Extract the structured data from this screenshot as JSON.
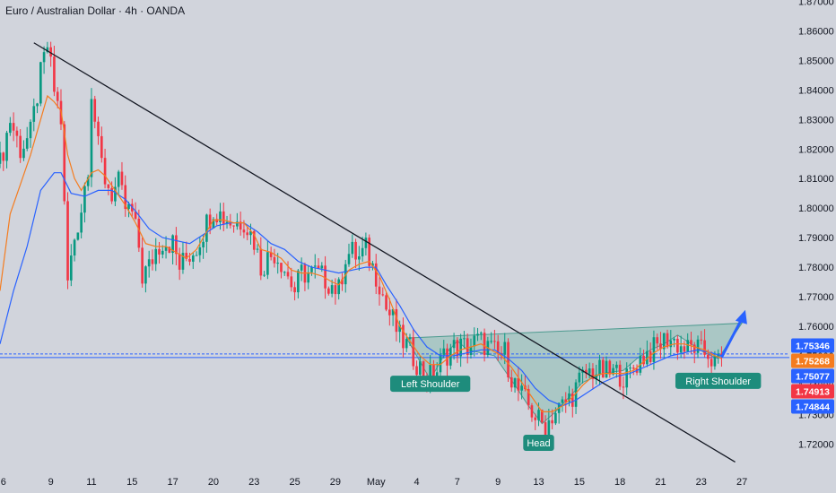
{
  "colors": {
    "background": "#d1d4dc",
    "up_candle": "#089981",
    "down_candle": "#f23645",
    "ema_fast": "#f57c1f",
    "ema_slow": "#2962ff",
    "trendline": "#131722",
    "pattern_fill": "#9cc3bd",
    "pattern_stroke": "#4e9b90",
    "label_bg": "#1e8c7c",
    "arrow": "#2962ff",
    "support_line": "#2962ff"
  },
  "chart_data": {
    "type": "candlestick",
    "title": "Euro / Australian Dollar · 4h · OANDA",
    "ylim": [
      1.712,
      1.8705
    ],
    "y_ticks": [
      "1.87000",
      "1.86000",
      "1.85000",
      "1.84000",
      "1.83000",
      "1.82000",
      "1.81000",
      "1.80000",
      "1.79000",
      "1.78000",
      "1.77000",
      "1.76000",
      "1.75000",
      "1.74000",
      "1.73000",
      "1.72000"
    ],
    "y_tick_values": [
      1.87,
      1.86,
      1.85,
      1.84,
      1.83,
      1.82,
      1.81,
      1.8,
      1.79,
      1.78,
      1.77,
      1.76,
      1.75,
      1.74,
      1.73,
      1.72
    ],
    "x_ticks": [
      "6",
      "9",
      "11",
      "15",
      "17",
      "20",
      "23",
      "25",
      "29",
      "May",
      "4",
      "7",
      "9",
      "13",
      "15",
      "18",
      "21",
      "23",
      "27"
    ],
    "x_tick_index": [
      1,
      15,
      27,
      39,
      51,
      63,
      75,
      87,
      99,
      111,
      123,
      135,
      147,
      159,
      171,
      183,
      195,
      207,
      219
    ],
    "index_range": [
      0,
      233
    ],
    "price_path": [
      [
        0,
        1.815
      ],
      [
        3,
        1.83
      ],
      [
        6,
        1.82
      ],
      [
        9,
        1.825
      ],
      [
        12,
        1.845
      ],
      [
        14,
        1.855
      ],
      [
        16,
        1.84
      ],
      [
        18,
        1.83
      ],
      [
        19,
        1.8
      ],
      [
        20,
        1.775
      ],
      [
        22,
        1.79
      ],
      [
        24,
        1.8
      ],
      [
        26,
        1.815
      ],
      [
        27,
        1.84
      ],
      [
        29,
        1.82
      ],
      [
        31,
        1.81
      ],
      [
        33,
        1.805
      ],
      [
        35,
        1.808
      ],
      [
        37,
        1.8
      ],
      [
        39,
        1.798
      ],
      [
        41,
        1.787
      ],
      [
        42,
        1.777
      ],
      [
        44,
        1.78
      ],
      [
        46,
        1.786
      ],
      [
        48,
        1.789
      ],
      [
        51,
        1.788
      ],
      [
        53,
        1.78
      ],
      [
        55,
        1.783
      ],
      [
        58,
        1.787
      ],
      [
        61,
        1.795
      ],
      [
        63,
        1.8
      ],
      [
        66,
        1.797
      ],
      [
        69,
        1.795
      ],
      [
        72,
        1.796
      ],
      [
        75,
        1.789
      ],
      [
        77,
        1.78
      ],
      [
        79,
        1.783
      ],
      [
        81,
        1.785
      ],
      [
        83,
        1.782
      ],
      [
        85,
        1.777
      ],
      [
        87,
        1.772
      ],
      [
        89,
        1.778
      ],
      [
        91,
        1.778
      ],
      [
        93,
        1.778
      ],
      [
        96,
        1.776
      ],
      [
        98,
        1.774
      ],
      [
        100,
        1.772
      ],
      [
        102,
        1.784
      ],
      [
        104,
        1.785
      ],
      [
        106,
        1.783
      ],
      [
        108,
        1.786
      ],
      [
        110,
        1.78
      ],
      [
        112,
        1.775
      ],
      [
        114,
        1.766
      ],
      [
        116,
        1.762
      ],
      [
        118,
        1.756
      ],
      [
        121,
        1.752
      ],
      [
        123,
        1.748
      ],
      [
        125,
        1.744
      ],
      [
        127,
        1.743
      ],
      [
        129,
        1.745
      ],
      [
        131,
        1.75
      ],
      [
        133,
        1.752
      ],
      [
        135,
        1.753
      ],
      [
        138,
        1.753
      ],
      [
        141,
        1.755
      ],
      [
        143,
        1.754
      ],
      [
        145,
        1.752
      ],
      [
        147,
        1.75
      ],
      [
        149,
        1.751
      ],
      [
        151,
        1.743
      ],
      [
        153,
        1.738
      ],
      [
        156,
        1.733
      ],
      [
        159,
        1.728
      ],
      [
        161,
        1.726
      ],
      [
        163,
        1.73
      ],
      [
        166,
        1.733
      ],
      [
        169,
        1.737
      ],
      [
        171,
        1.741
      ],
      [
        173,
        1.744
      ],
      [
        175,
        1.745
      ],
      [
        178,
        1.744
      ],
      [
        181,
        1.744
      ],
      [
        183,
        1.744
      ],
      [
        185,
        1.742
      ],
      [
        187,
        1.746
      ],
      [
        189,
        1.749
      ],
      [
        191,
        1.751
      ],
      [
        193,
        1.752
      ],
      [
        195,
        1.754
      ],
      [
        197,
        1.756
      ],
      [
        199,
        1.755
      ],
      [
        201,
        1.753
      ],
      [
        203,
        1.752
      ],
      [
        205,
        1.753
      ],
      [
        207,
        1.751
      ],
      [
        209,
        1.751
      ],
      [
        211,
        1.747
      ],
      [
        213,
        1.749
      ]
    ],
    "ema_fast_path": [
      [
        0,
        1.772
      ],
      [
        3,
        1.798
      ],
      [
        6,
        1.808
      ],
      [
        9,
        1.818
      ],
      [
        12,
        1.83
      ],
      [
        14,
        1.838
      ],
      [
        16,
        1.836
      ],
      [
        18,
        1.833
      ],
      [
        20,
        1.818
      ],
      [
        22,
        1.81
      ],
      [
        24,
        1.806
      ],
      [
        27,
        1.812
      ],
      [
        29,
        1.813
      ],
      [
        31,
        1.811
      ],
      [
        34,
        1.806
      ],
      [
        37,
        1.801
      ],
      [
        40,
        1.795
      ],
      [
        43,
        1.788
      ],
      [
        46,
        1.787
      ],
      [
        49,
        1.787
      ],
      [
        52,
        1.785
      ],
      [
        55,
        1.783
      ],
      [
        58,
        1.786
      ],
      [
        61,
        1.792
      ],
      [
        63,
        1.796
      ],
      [
        66,
        1.796
      ],
      [
        69,
        1.795
      ],
      [
        72,
        1.795
      ],
      [
        75,
        1.791
      ],
      [
        77,
        1.786
      ],
      [
        80,
        1.785
      ],
      [
        83,
        1.783
      ],
      [
        86,
        1.779
      ],
      [
        89,
        1.778
      ],
      [
        92,
        1.778
      ],
      [
        95,
        1.777
      ],
      [
        98,
        1.775
      ],
      [
        100,
        1.774
      ],
      [
        103,
        1.779
      ],
      [
        106,
        1.781
      ],
      [
        109,
        1.782
      ],
      [
        112,
        1.777
      ],
      [
        115,
        1.769
      ],
      [
        118,
        1.76
      ],
      [
        121,
        1.755
      ],
      [
        124,
        1.75
      ],
      [
        127,
        1.747
      ],
      [
        130,
        1.747
      ],
      [
        133,
        1.75
      ],
      [
        136,
        1.752
      ],
      [
        139,
        1.753
      ],
      [
        142,
        1.754
      ],
      [
        145,
        1.752
      ],
      [
        148,
        1.75
      ],
      [
        151,
        1.746
      ],
      [
        154,
        1.741
      ],
      [
        157,
        1.736
      ],
      [
        160,
        1.731
      ],
      [
        163,
        1.731
      ],
      [
        166,
        1.733
      ],
      [
        169,
        1.736
      ],
      [
        172,
        1.74
      ],
      [
        175,
        1.743
      ],
      [
        178,
        1.744
      ],
      [
        181,
        1.744
      ],
      [
        184,
        1.744
      ],
      [
        187,
        1.745
      ],
      [
        190,
        1.748
      ],
      [
        193,
        1.751
      ],
      [
        196,
        1.753
      ],
      [
        199,
        1.754
      ],
      [
        202,
        1.754
      ],
      [
        205,
        1.753
      ],
      [
        208,
        1.752
      ],
      [
        211,
        1.75
      ],
      [
        213,
        1.749
      ]
    ],
    "ema_slow_path": [
      [
        0,
        1.754
      ],
      [
        4,
        1.772
      ],
      [
        8,
        1.787
      ],
      [
        12,
        1.806
      ],
      [
        16,
        1.812
      ],
      [
        18,
        1.812
      ],
      [
        21,
        1.805
      ],
      [
        25,
        1.804
      ],
      [
        29,
        1.806
      ],
      [
        33,
        1.806
      ],
      [
        37,
        1.803
      ],
      [
        40,
        1.799
      ],
      [
        44,
        1.793
      ],
      [
        48,
        1.79
      ],
      [
        52,
        1.789
      ],
      [
        56,
        1.788
      ],
      [
        60,
        1.791
      ],
      [
        64,
        1.794
      ],
      [
        68,
        1.795
      ],
      [
        72,
        1.795
      ],
      [
        76,
        1.792
      ],
      [
        80,
        1.788
      ],
      [
        84,
        1.786
      ],
      [
        88,
        1.782
      ],
      [
        92,
        1.78
      ],
      [
        96,
        1.779
      ],
      [
        100,
        1.778
      ],
      [
        104,
        1.779
      ],
      [
        108,
        1.78
      ],
      [
        111,
        1.78
      ],
      [
        114,
        1.774
      ],
      [
        118,
        1.767
      ],
      [
        122,
        1.759
      ],
      [
        126,
        1.753
      ],
      [
        130,
        1.75
      ],
      [
        134,
        1.75
      ],
      [
        138,
        1.751
      ],
      [
        142,
        1.752
      ],
      [
        146,
        1.752
      ],
      [
        150,
        1.749
      ],
      [
        154,
        1.745
      ],
      [
        158,
        1.739
      ],
      [
        162,
        1.735
      ],
      [
        166,
        1.733
      ],
      [
        170,
        1.735
      ],
      [
        174,
        1.738
      ],
      [
        178,
        1.741
      ],
      [
        182,
        1.743
      ],
      [
        186,
        1.744
      ],
      [
        190,
        1.746
      ],
      [
        194,
        1.748
      ],
      [
        198,
        1.75
      ],
      [
        202,
        1.751
      ],
      [
        206,
        1.752
      ],
      [
        210,
        1.751
      ],
      [
        213,
        1.75
      ]
    ],
    "trendline": {
      "from": [
        10,
        1.856
      ],
      "to": [
        217,
        1.714
      ]
    },
    "support_lines": [
      1.7506,
      1.7494
    ],
    "pattern_polygon": [
      [
        120,
        1.756
      ],
      [
        123,
        1.75
      ],
      [
        127,
        1.742
      ],
      [
        131,
        1.75
      ],
      [
        135,
        1.755
      ],
      [
        138,
        1.752
      ],
      [
        142,
        1.751
      ],
      [
        146,
        1.75
      ],
      [
        152,
        1.74
      ],
      [
        156,
        1.733
      ],
      [
        160,
        1.727
      ],
      [
        164,
        1.731
      ],
      [
        168,
        1.736
      ],
      [
        172,
        1.741
      ],
      [
        178,
        1.744
      ],
      [
        184,
        1.745
      ],
      [
        188,
        1.749
      ],
      [
        192,
        1.752
      ],
      [
        196,
        1.754
      ],
      [
        200,
        1.757
      ],
      [
        204,
        1.754
      ],
      [
        208,
        1.751
      ],
      [
        212,
        1.749
      ],
      [
        219,
        1.761
      ]
    ],
    "projection_arrow": {
      "from": [
        213,
        1.7495
      ],
      "to": [
        220,
        1.7655
      ]
    },
    "annotations": [
      {
        "text": "Left Shoulder",
        "at": [
          127,
          1.7405
        ]
      },
      {
        "text": "Head",
        "at": [
          159,
          1.7205
        ]
      },
      {
        "text": "Right Shoulder",
        "at": [
          212,
          1.7415
        ]
      }
    ],
    "price_tags": [
      {
        "text": "1.75346",
        "value": 1.75346,
        "color": "#2962ff"
      },
      {
        "text": "1.75268",
        "value": 1.75268,
        "color": "#f57c1f"
      },
      {
        "text": "1.75077",
        "value": 1.75077,
        "color": "#2962ff"
      },
      {
        "text": "1.74913",
        "value": 1.74913,
        "color": "#f23645"
      },
      {
        "text": "1.74844",
        "value": 1.74844,
        "color": "#2962ff"
      }
    ]
  }
}
